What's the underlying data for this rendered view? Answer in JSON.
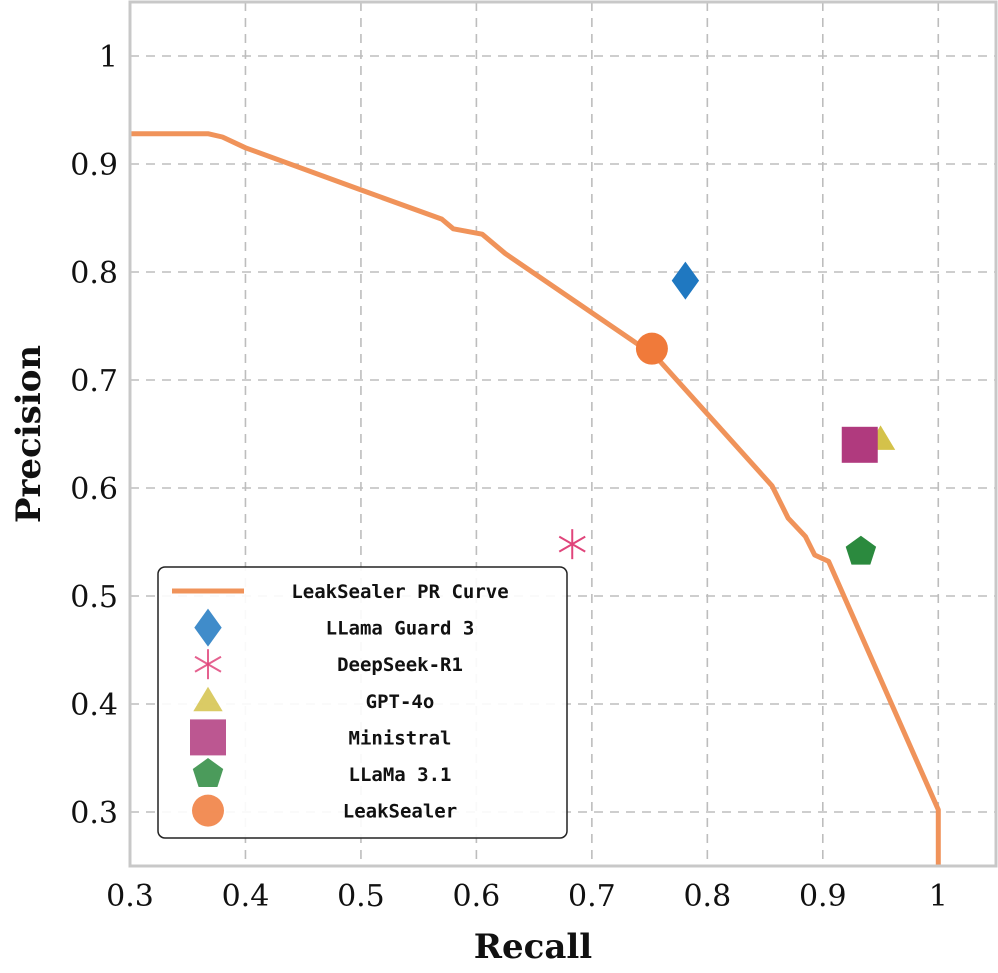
{
  "chart_data": {
    "type": "line",
    "xlabel": "Recall",
    "ylabel": "Precision",
    "xlim": [
      0.3,
      1.05
    ],
    "ylim": [
      0.25,
      1.05
    ],
    "xticks": [
      0.3,
      0.4,
      0.5,
      0.6,
      0.7,
      0.8,
      0.9,
      1
    ],
    "yticks": [
      0.3,
      0.4,
      0.5,
      0.6,
      0.7,
      0.8,
      0.9,
      1
    ],
    "xtick_labels": [
      "0.3",
      "0.4",
      "0.5",
      "0.6",
      "0.7",
      "0.8",
      "0.9",
      "1"
    ],
    "ytick_labels": [
      "0.3",
      "0.4",
      "0.5",
      "0.6",
      "0.7",
      "0.8",
      "0.9",
      "1"
    ],
    "grid": true,
    "legend_position": "bottom-left",
    "series": [
      {
        "name": "LeakSealer PR Curve",
        "kind": "line",
        "color": "#f0935a",
        "x": [
          0.3,
          0.368,
          0.38,
          0.4,
          0.5,
          0.57,
          0.58,
          0.605,
          0.625,
          0.755,
          0.856,
          0.87,
          0.885,
          0.893,
          0.905,
          1.0,
          1.0
        ],
        "y": [
          0.928,
          0.928,
          0.925,
          0.915,
          0.876,
          0.849,
          0.84,
          0.835,
          0.817,
          0.722,
          0.602,
          0.572,
          0.555,
          0.538,
          0.532,
          0.302,
          0.25
        ]
      },
      {
        "name": "LLama Guard 3",
        "kind": "point",
        "marker": "diamond",
        "color": "#1f78c1",
        "x": 0.781,
        "y": 0.792
      },
      {
        "name": "DeepSeek-R1",
        "kind": "point",
        "marker": "asterisk",
        "color": "#e0457b",
        "x": 0.683,
        "y": 0.548
      },
      {
        "name": "GPT-4o",
        "kind": "point",
        "marker": "triangle",
        "color": "#d4c24a",
        "x": 0.95,
        "y": 0.645
      },
      {
        "name": "Ministral",
        "kind": "point",
        "marker": "square",
        "color": "#b03a7e",
        "x": 0.932,
        "y": 0.64
      },
      {
        "name": "LLaMa 3.1",
        "kind": "point",
        "marker": "pentagon",
        "color": "#2b8a3e",
        "x": 0.933,
        "y": 0.541
      },
      {
        "name": "LeakSealer",
        "kind": "point",
        "marker": "circle",
        "color": "#f07a3a",
        "x": 0.752,
        "y": 0.729
      }
    ]
  }
}
